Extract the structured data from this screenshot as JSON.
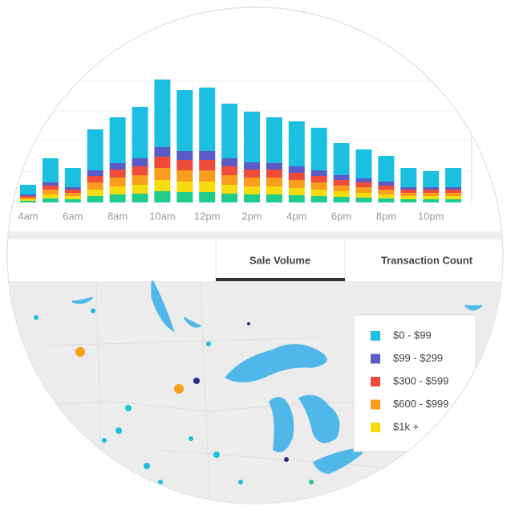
{
  "chart_data": {
    "type": "bar",
    "stacked": true,
    "categories": [
      "4am",
      null,
      "6am",
      null,
      "8am",
      null,
      "10am",
      null,
      "12pm",
      null,
      "2pm",
      null,
      "4pm",
      null,
      "6pm",
      null,
      "8pm",
      null,
      "10pm",
      null
    ],
    "ylim": [
      0,
      170
    ],
    "series": [
      {
        "color": "#1fcc8a",
        "values": [
          2,
          5,
          4,
          8,
          10,
          11,
          14,
          13,
          13,
          11,
          10,
          10,
          9,
          8,
          7,
          6,
          5,
          4,
          4,
          4
        ]
      },
      {
        "color": "#f5dc0f",
        "values": [
          2,
          5,
          4,
          8,
          10,
          11,
          14,
          13,
          13,
          11,
          10,
          10,
          9,
          8,
          7,
          6,
          5,
          4,
          4,
          4
        ]
      },
      {
        "color": "#f99d1c",
        "values": [
          2,
          6,
          4,
          9,
          11,
          12,
          15,
          14,
          14,
          12,
          11,
          11,
          10,
          9,
          7,
          7,
          6,
          4,
          4,
          4
        ]
      },
      {
        "color": "#ef4b3a",
        "values": [
          2,
          5,
          4,
          8,
          10,
          11,
          14,
          13,
          13,
          11,
          10,
          10,
          9,
          8,
          7,
          6,
          5,
          4,
          4,
          4
        ]
      },
      {
        "color": "#5b5bc8",
        "values": [
          2,
          4,
          3,
          7,
          8,
          10,
          12,
          11,
          11,
          10,
          9,
          8,
          8,
          7,
          6,
          5,
          5,
          3,
          3,
          3
        ]
      },
      {
        "color": "#1bbfdf",
        "values": [
          12,
          30,
          24,
          51,
          57,
          64,
          84,
          76,
          79,
          68,
          63,
          57,
          56,
          53,
          40,
          36,
          32,
          24,
          20,
          24
        ]
      }
    ]
  },
  "tabs": [
    "Sale Volume",
    "Transaction Count"
  ],
  "map_legend": [
    {
      "label": "$0 - $99",
      "color": "#1bbfdf"
    },
    {
      "label": "$99 - $299",
      "color": "#5b5bc8"
    },
    {
      "label": "$300 - $599",
      "color": "#ef4b3a"
    },
    {
      "label": "$600 - $999",
      "color": "#f99d1c"
    },
    {
      "label": "$1k +",
      "color": "#f5dc0f"
    }
  ]
}
